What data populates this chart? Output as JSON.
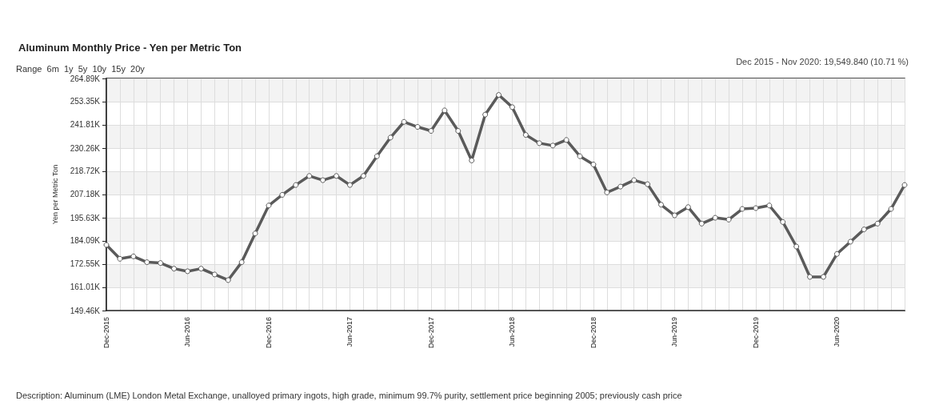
{
  "chart_data": {
    "type": "line",
    "title": "Aluminum Monthly Price - Yen per Metric Ton",
    "subtitle": "Dec 2015 - Nov 2020: 19,549.840 (10.71 %)",
    "ylabel": "Yen per Metric Ton",
    "annotations": [
      "Range  6m  1y  5y  10y  15y  20y",
      "Description: Aluminum (LME) London Metal Exchange, unalloyed primary ingots, high grade, minimum 99.7% purity, settlement price beginning 2005; previously cash price"
    ],
    "categories": [
      "Dec-2015",
      null,
      null,
      null,
      null,
      null,
      "Jun-2016",
      null,
      null,
      null,
      null,
      null,
      "Dec-2016",
      null,
      null,
      null,
      null,
      null,
      "Jun-2017",
      null,
      null,
      null,
      null,
      null,
      "Dec-2017",
      null,
      null,
      null,
      null,
      null,
      "Jun-2018",
      null,
      null,
      null,
      null,
      null,
      "Dec-2018",
      null,
      null,
      null,
      null,
      null,
      "Jun-2019",
      null,
      null,
      null,
      null,
      null,
      "Dec-2019",
      null,
      null,
      null,
      null,
      null,
      "Jun-2020",
      null,
      null,
      null,
      null,
      null
    ],
    "series": [
      {
        "color": "#5a5a5a",
        "values": [
          182.1,
          175.2,
          176.4,
          173.5,
          173.1,
          170.3,
          169.0,
          170.3,
          167.4,
          164.6,
          173.5,
          187.8,
          201.7,
          207.0,
          211.9,
          216.4,
          214.3,
          216.4,
          211.9,
          216.4,
          226.2,
          235.5,
          243.3,
          240.8,
          238.8,
          249.0,
          238.8,
          224.1,
          246.9,
          256.7,
          250.6,
          236.8,
          232.7,
          231.5,
          234.3,
          226.2,
          222.1,
          208.2,
          211.1,
          214.3,
          212.3,
          202.1,
          196.8,
          200.9,
          192.7,
          195.6,
          194.7,
          200.0,
          200.4,
          201.7,
          193.5,
          181.3,
          166.2,
          166.2,
          177.6,
          183.7,
          189.8,
          192.7,
          200.0,
          211.9
        ]
      }
    ],
    "ylim": [
      149.46,
      264.89
    ],
    "yticks": [
      {
        "value": 149.46,
        "label": "149.46K"
      },
      {
        "value": 161.01,
        "label": "161.01K"
      },
      {
        "value": 172.55,
        "label": "172.55K"
      },
      {
        "value": 184.09,
        "label": "184.09K"
      },
      {
        "value": 195.63,
        "label": "195.63K"
      },
      {
        "value": 207.18,
        "label": "207.18K"
      },
      {
        "value": 218.72,
        "label": "218.72K"
      },
      {
        "value": 230.26,
        "label": "230.26K"
      },
      {
        "value": 241.81,
        "label": "241.81K"
      },
      {
        "value": 253.35,
        "label": "253.35K"
      },
      {
        "value": 264.89,
        "label": "264.89K"
      }
    ],
    "grid": true,
    "marker": "circle"
  }
}
